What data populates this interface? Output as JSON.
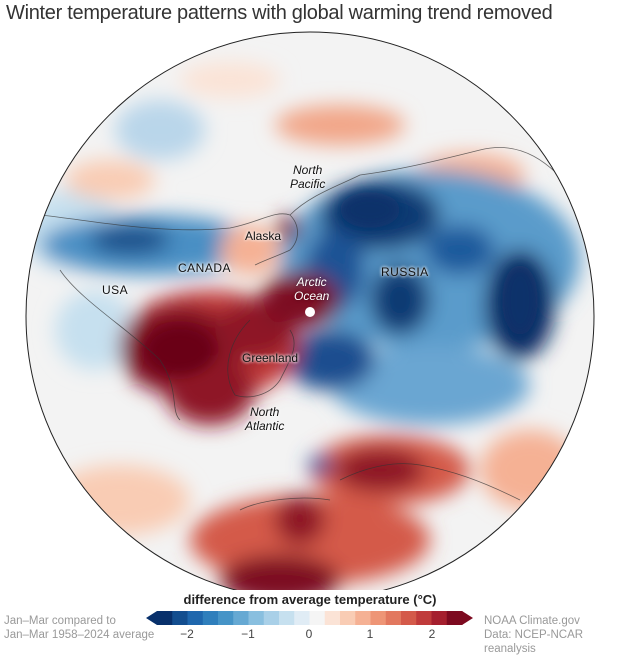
{
  "title": "Winter temperature patterns with global warming trend removed",
  "map_labels": {
    "north_pacific": [
      "North",
      "Pacific"
    ],
    "alaska": "Alaska",
    "canada": "CANADA",
    "usa": "USA",
    "russia": "RUSSIA",
    "arctic_ocean": [
      "Arctic",
      "Ocean"
    ],
    "greenland": "Greenland",
    "north_atlantic": [
      "North",
      "Atlantic"
    ]
  },
  "legend": {
    "title": "difference from average temperature (°C)",
    "range": [
      -2.5,
      2.5
    ],
    "ticks": [
      "−2",
      "−1",
      "0",
      "1",
      "2"
    ],
    "colors": [
      "#08306b",
      "#134e8f",
      "#1f67ad",
      "#2f7fbc",
      "#4694c7",
      "#66a9d3",
      "#89bfdf",
      "#a9d0e8",
      "#c6e0ef",
      "#e0ecf5",
      "#f5f5f5",
      "#fbe3d6",
      "#f9ccb4",
      "#f5b194",
      "#ee9576",
      "#e2785f",
      "#d45a4a",
      "#c03b3b",
      "#a51f2e",
      "#7d0a20"
    ]
  },
  "notes": {
    "left": [
      "Jan–Mar compared to",
      "Jan–Mar 1958–2024 average"
    ],
    "right": [
      "NOAA Climate.gov",
      "Data: NCEP-NCAR reanalysis"
    ]
  }
}
